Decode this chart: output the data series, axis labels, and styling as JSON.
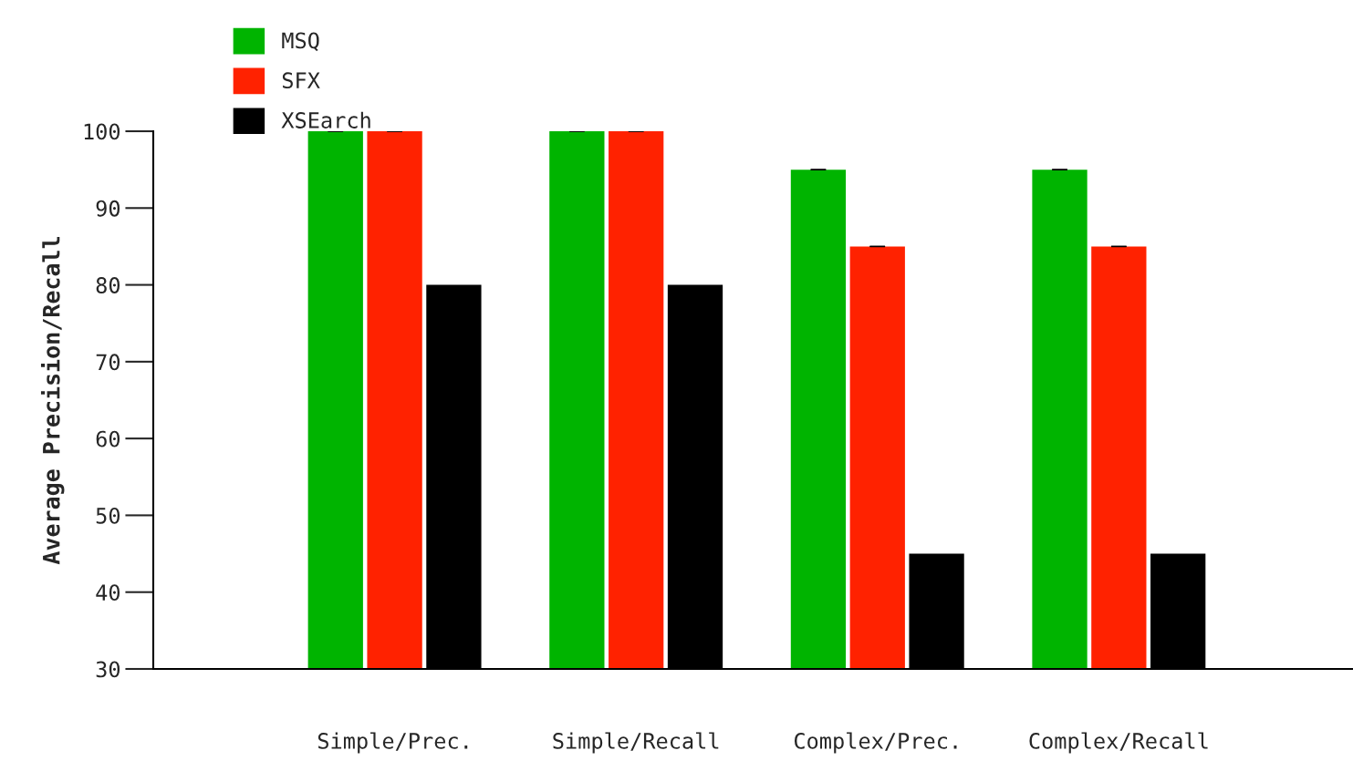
{
  "chart_data": {
    "type": "bar",
    "categories": [
      "Simple/Prec.",
      "Simple/Recall",
      "Complex/Prec.",
      "Complex/Recall"
    ],
    "ylabel": "Average Precision/Recall",
    "series": [
      {
        "name": "MSQ",
        "color": "#00b400",
        "values": [
          100,
          100,
          95,
          95
        ],
        "errors": [
          0,
          0,
          0,
          0
        ]
      },
      {
        "name": "SFX",
        "color": "#ff2200",
        "values": [
          100,
          100,
          85,
          85
        ],
        "errors": [
          0,
          0,
          0,
          0
        ]
      },
      {
        "name": "XSEarch",
        "color": "#000000",
        "values": [
          80,
          80,
          45,
          45
        ]
      }
    ],
    "ylim": [
      30,
      100
    ],
    "yticks": [
      30,
      40,
      50,
      60,
      70,
      80,
      90,
      100
    ],
    "grid": false,
    "legend": "top left"
  }
}
